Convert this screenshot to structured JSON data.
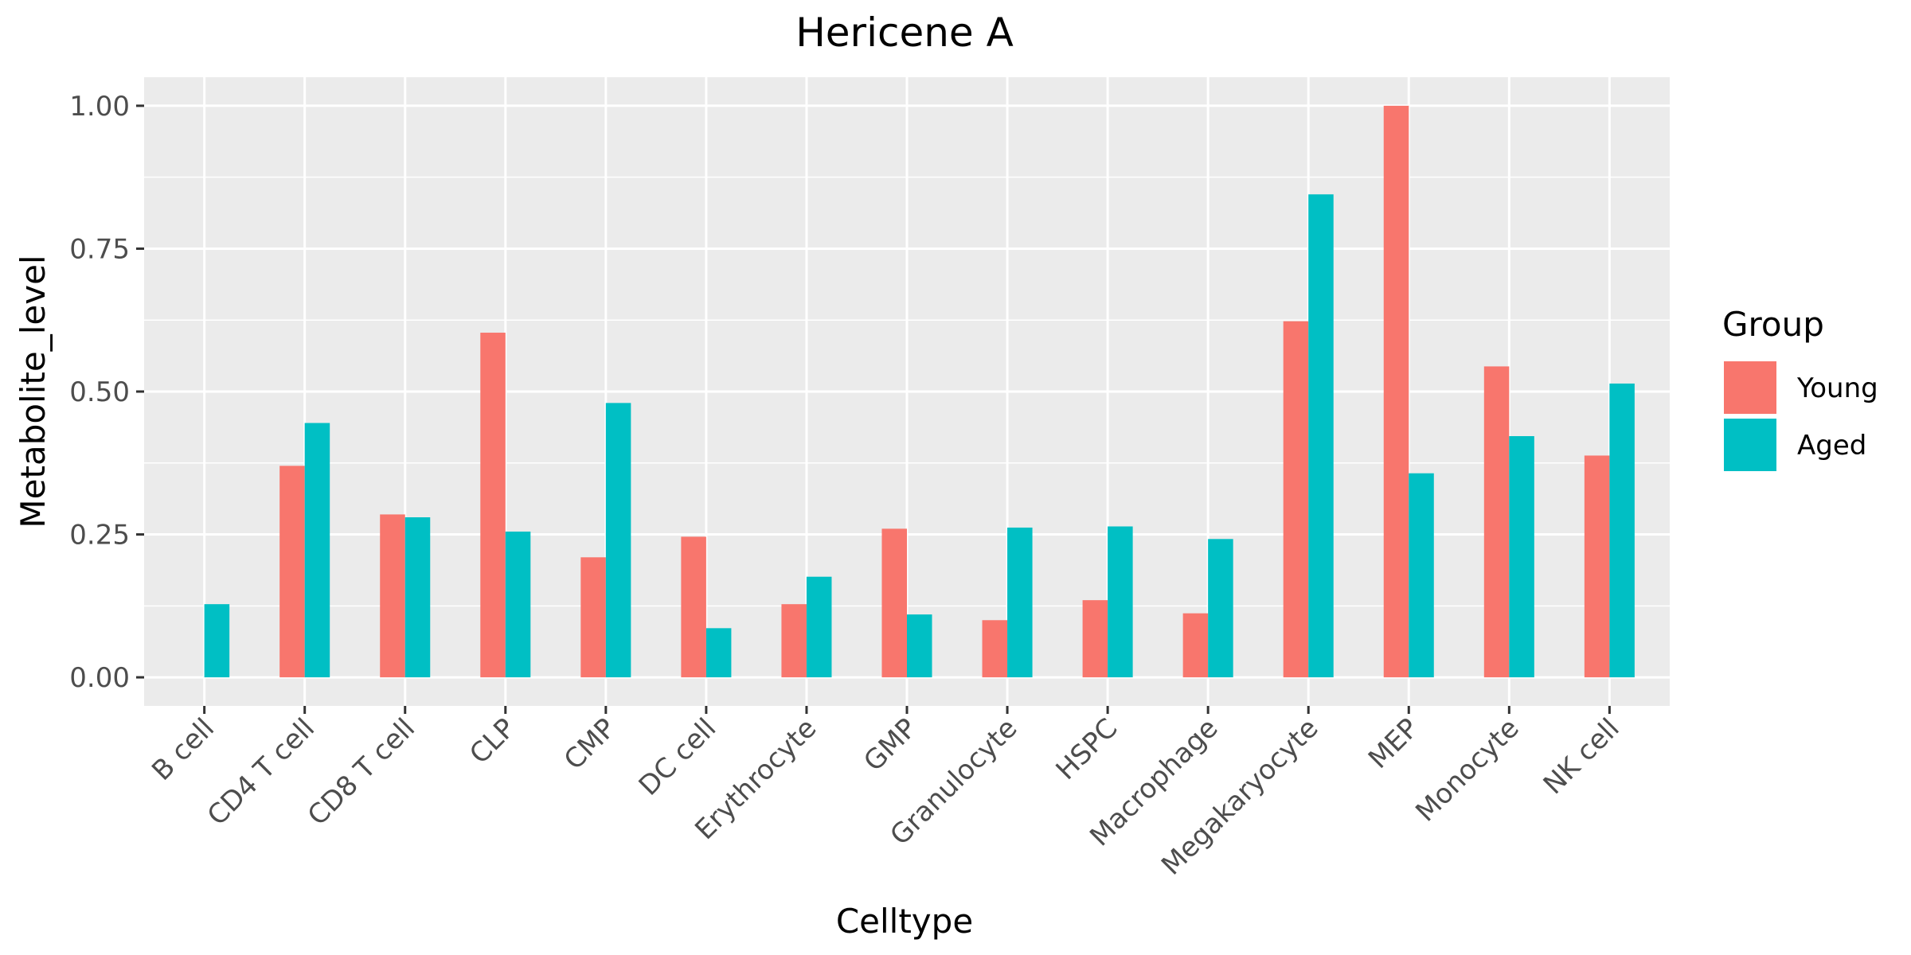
{
  "chart_data": {
    "type": "bar",
    "title": "Hericene A",
    "xlabel": "Celltype",
    "ylabel": "Metabolite_level",
    "ylim": [
      -0.05,
      1.05
    ],
    "yticks": [
      0.0,
      0.25,
      0.5,
      0.75,
      1.0
    ],
    "ytick_labels": [
      "0.00",
      "0.25",
      "0.50",
      "0.75",
      "1.00"
    ],
    "categories": [
      "B cell",
      "CD4 T cell",
      "CD8 T cell",
      "CLP",
      "CMP",
      "DC cell",
      "Erythrocyte",
      "GMP",
      "Granulocyte",
      "HSPC",
      "Macrophage",
      "Megakaryocyte",
      "MEP",
      "Monocyte",
      "NK cell"
    ],
    "series": [
      {
        "name": "Young",
        "color": "#F8766D",
        "values": [
          null,
          0.37,
          0.285,
          0.603,
          0.21,
          0.246,
          0.128,
          0.26,
          0.1,
          0.135,
          0.112,
          0.623,
          1.0,
          0.544,
          0.388
        ]
      },
      {
        "name": "Aged",
        "color": "#00BFC4",
        "values": [
          0.128,
          0.445,
          0.28,
          0.255,
          0.48,
          0.086,
          0.176,
          0.11,
          0.262,
          0.264,
          0.242,
          0.845,
          0.357,
          0.422,
          0.514
        ]
      }
    ],
    "legend": {
      "title": "Group",
      "position": "right"
    },
    "grid": true,
    "panel_background": "#EBEBEB",
    "gridline_color": "#FFFFFF"
  }
}
